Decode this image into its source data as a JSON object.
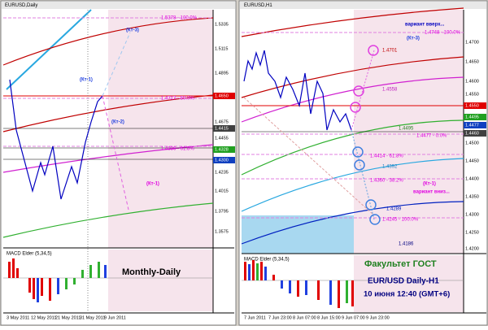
{
  "left_window": {
    "title": "EURUSD,Daily",
    "labels": {
      "fibo_100": "1.5378 - 100.0%",
      "kt3": "(Кт-3)",
      "kt1": "(Кт-1)",
      "kt2": "(Кт-2)",
      "fibo_50": "1.4717 - 50.0%",
      "fibo_618": "1.4336 - 61.8%",
      "kt1_down": "(Кт-1)"
    },
    "price_axis": [
      "1.5335",
      "1.5115",
      "1.4895",
      "1.4675",
      "1.4455",
      "1.4235",
      "1.4015",
      "1.3795",
      "1.3575"
    ],
    "price_boxes": {
      "red": "1.4650",
      "dark": "1.4415",
      "green": "1.4328",
      "blue": "1.4300"
    },
    "indicator": "MACD Elder (5,34,5)",
    "caption": "Monthly-Daily",
    "dates": [
      "3 May 2011",
      "12 May 2011",
      "21 May 2011",
      "31 May 2011",
      "9 Jun 2011"
    ]
  },
  "right_window": {
    "title": "EURUSD,H1",
    "labels": {
      "up_variant": "вариант вверх...",
      "kt3": "(Кт-3)",
      "fibo_100": "1.4748 - 100.0%",
      "l4701": "1.4701",
      "l4558": "1.4558",
      "l4495": "1.4495",
      "fibo_0": "1.4477 - 0.0%",
      "fibo_618": "1.4414 - 61.8%",
      "l4392": "1.4392",
      "fibo_382": "1.4360 - 38.2%",
      "kt1": "(Кт-1)",
      "down_variant": "вариант вниз...",
      "l4289": "1.4289",
      "fibo_100b": "1.4245 - 100.0%",
      "l4186": "1.4186"
    },
    "price_axis": [
      "1.4700",
      "1.4650",
      "1.4600",
      "1.4550",
      "1.4500",
      "1.4450",
      "1.4400",
      "1.4350",
      "1.4300",
      "1.4250",
      "1.4200"
    ],
    "price_boxes": {
      "red": "1.4550",
      "green": "1.4495",
      "blue": "1.4477",
      "dark": "1.4460"
    },
    "indicator": "MACD Elder (5,34,5)",
    "caption": {
      "line1": "Факультет ГОСТ",
      "line2": "EUR/USD Daily-H1",
      "line3": "10 июня 12:40 (GMT+6)"
    },
    "dates": [
      "7 Jun 2011",
      "7 Jun 23:00",
      "8 Jun 07:00",
      "8 Jun 15:00",
      "9 Jun 07:00",
      "9 Jun 23:00"
    ]
  }
}
